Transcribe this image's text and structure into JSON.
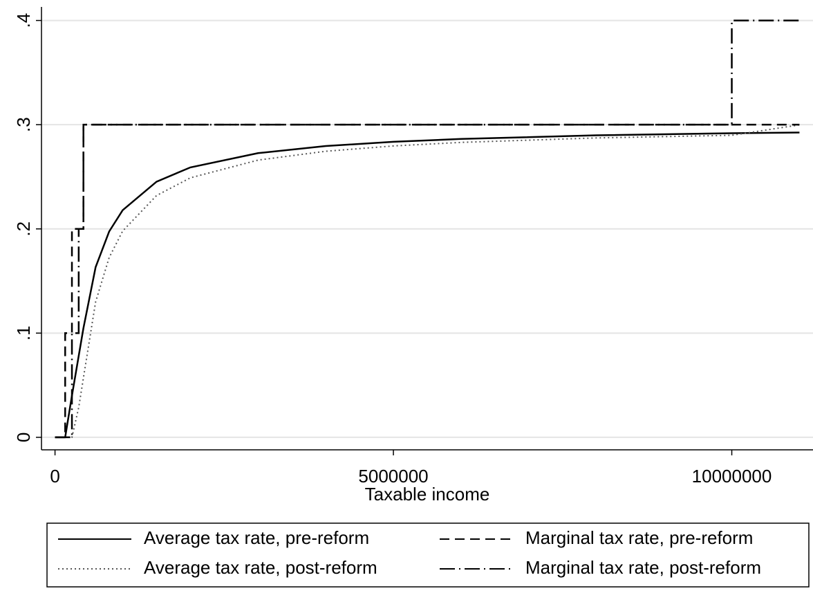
{
  "chart_data": {
    "type": "line",
    "x_label": "Taxable income",
    "xlim": [
      -200000,
      11200000
    ],
    "ylim": [
      -0.012,
      0.413
    ],
    "xticks": [
      0,
      5000000,
      10000000
    ],
    "yticks": [
      0,
      {
        "value": 0.1,
        "label": ".1"
      },
      {
        "value": 0.2,
        "label": ".2"
      },
      {
        "value": 0.3,
        "label": ".3"
      },
      {
        "value": 0.4,
        "label": ".4"
      }
    ],
    "grid": true,
    "legend": "bottom",
    "series": [
      {
        "name": "Average tax rate, pre-reform",
        "color": "#000000",
        "dash": "solid",
        "x": [
          0,
          150000,
          250000,
          420000,
          600000,
          800000,
          1000000,
          1500000,
          2000000,
          3000000,
          4000000,
          5000000,
          6000000,
          8000000,
          10000000,
          11000000
        ],
        "values": [
          0,
          0,
          0.04,
          0.1048,
          0.1633,
          0.1975,
          0.218,
          0.2453,
          0.259,
          0.2727,
          0.2795,
          0.2836,
          0.2863,
          0.2898,
          0.2918,
          0.2925
        ]
      },
      {
        "name": "Average tax rate, post-reform",
        "color": "#555555",
        "dash": "dot",
        "x": [
          0,
          250000,
          350000,
          420000,
          600000,
          800000,
          1000000,
          1500000,
          2000000,
          3000000,
          4000000,
          5000000,
          6000000,
          8000000,
          10000000,
          11000000
        ],
        "values": [
          0,
          0,
          0.0286,
          0.0571,
          0.13,
          0.1725,
          0.198,
          0.232,
          0.249,
          0.266,
          0.2745,
          0.2796,
          0.283,
          0.2873,
          0.2898,
          0.2998
        ]
      },
      {
        "name": "Marginal tax rate, pre-reform",
        "color": "#000000",
        "dash": "dash",
        "x": [
          0,
          150000,
          150000,
          250000,
          250000,
          420000,
          420000,
          11000000
        ],
        "values": [
          0,
          0,
          0.1,
          0.1,
          0.2,
          0.2,
          0.3,
          0.3
        ]
      },
      {
        "name": "Marginal tax rate, post-reform",
        "color": "#000000",
        "dash": "dashdot",
        "x": [
          0,
          250000,
          250000,
          350000,
          350000,
          420000,
          420000,
          10000000,
          10000000,
          11000000
        ],
        "values": [
          0,
          0,
          0.1,
          0.1,
          0.2,
          0.2,
          0.3,
          0.3,
          0.4,
          0.4
        ]
      }
    ]
  }
}
